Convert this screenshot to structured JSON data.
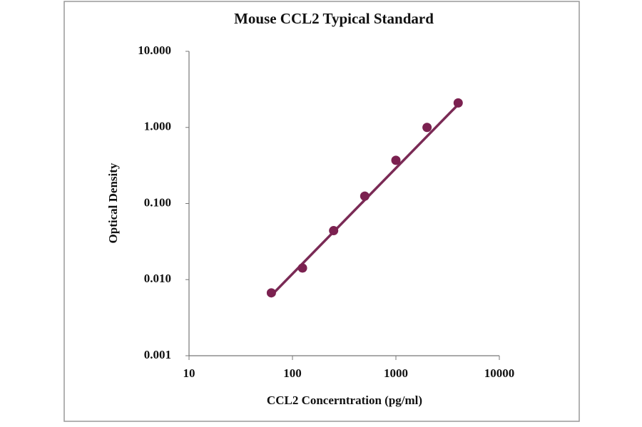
{
  "chart_data": {
    "type": "scatter",
    "title": "Mouse CCL2 Typical Standard",
    "xlabel": "CCL2 Concerntration (pg/ml)",
    "ylabel": "Optical Density",
    "x": [
      62.5,
      125,
      250,
      500,
      1000,
      2000,
      4000
    ],
    "series": [
      {
        "color": "#7b2150",
        "values": [
          0.0067,
          0.0142,
          0.044,
          0.125,
          0.37,
          1.0,
          2.1
        ]
      }
    ],
    "fit": {
      "color": "#7a2a55",
      "x": [
        62.5,
        4000
      ],
      "values": [
        0.0062,
        2.0
      ]
    },
    "xscale": "log",
    "yscale": "log",
    "xlim": [
      10,
      10000
    ],
    "ylim": [
      0.001,
      10
    ],
    "xticks": [
      10,
      100,
      1000,
      10000
    ],
    "yticks": [
      {
        "value": 0.001,
        "label": "0.001"
      },
      {
        "value": 0.01,
        "label": "0.010"
      },
      {
        "value": 0.1,
        "label": "0.100"
      },
      {
        "value": 1,
        "label": "1.000"
      },
      {
        "value": 10,
        "label": "10.000"
      }
    ],
    "grid": false
  }
}
